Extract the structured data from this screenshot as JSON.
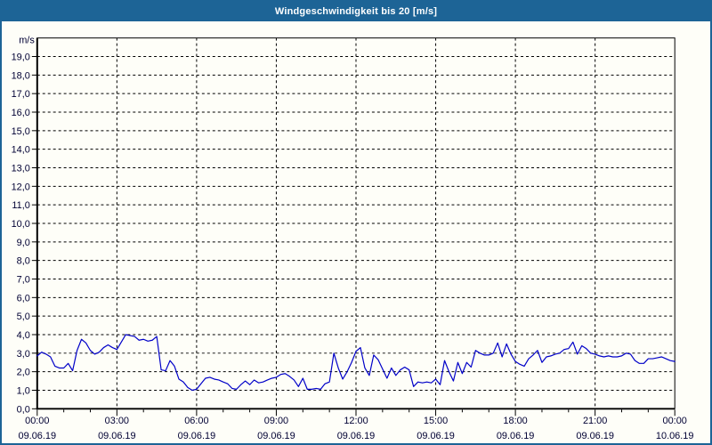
{
  "window": {
    "title": "Windgeschwindigkeit bis 20 [m/s]"
  },
  "colors": {
    "titlebar_bg": "#1D6496",
    "titlebar_text": "#FFFFFF",
    "window_border": "#1D6496",
    "background": "#FEFEF8",
    "grid_color": "#000000",
    "axis_color": "#000000",
    "label_color": "#000033",
    "series_line": "#0000C8"
  },
  "chart_data": {
    "type": "line",
    "title": "Windgeschwindigkeit bis 20 [m/s]",
    "unit_label": "m/s",
    "ylim": [
      0,
      20
    ],
    "xlim_hours": [
      0,
      24
    ],
    "grid": "dashed",
    "legend_position": "none",
    "y_tick_labels": [
      "0,0",
      "1,0",
      "2,0",
      "3,0",
      "4,0",
      "5,0",
      "6,0",
      "7,0",
      "8,0",
      "9,0",
      "10,0",
      "11,0",
      "12,0",
      "13,0",
      "14,0",
      "15,0",
      "16,0",
      "17,0",
      "18,0",
      "19,0"
    ],
    "x_ticks": [
      {
        "hour": 0,
        "time": "00:00",
        "date": "09.06.19"
      },
      {
        "hour": 3,
        "time": "03:00",
        "date": "09.06.19"
      },
      {
        "hour": 6,
        "time": "06:00",
        "date": "09.06.19"
      },
      {
        "hour": 9,
        "time": "09:00",
        "date": "09.06.19"
      },
      {
        "hour": 12,
        "time": "12:00",
        "date": "09.06.19"
      },
      {
        "hour": 15,
        "time": "15:00",
        "date": "09.06.19"
      },
      {
        "hour": 18,
        "time": "18:00",
        "date": "09.06.19"
      },
      {
        "hour": 21,
        "time": "21:00",
        "date": "09.06.19"
      },
      {
        "hour": 24,
        "time": "00:00",
        "date": "10.06.19"
      }
    ],
    "minor_x_tick_interval_hours": 1,
    "series": [
      {
        "name": "Windgeschwindigkeit",
        "color": "#0000C8",
        "x_start_hour": 0,
        "x_step_hours": 0.16667,
        "values": [
          2.85,
          3.05,
          2.95,
          2.8,
          2.3,
          2.2,
          2.2,
          2.45,
          2.05,
          3.15,
          3.75,
          3.55,
          3.15,
          2.95,
          3.05,
          3.3,
          3.45,
          3.3,
          3.2,
          3.6,
          4.0,
          3.95,
          3.9,
          3.7,
          3.75,
          3.65,
          3.7,
          3.9,
          2.1,
          2.05,
          2.6,
          2.3,
          1.6,
          1.45,
          1.15,
          1.0,
          1.05,
          1.35,
          1.65,
          1.7,
          1.6,
          1.55,
          1.45,
          1.35,
          1.1,
          1.05,
          1.3,
          1.5,
          1.3,
          1.55,
          1.4,
          1.45,
          1.55,
          1.65,
          1.7,
          1.85,
          1.9,
          1.75,
          1.55,
          1.2,
          1.65,
          1.05,
          1.05,
          1.1,
          1.05,
          1.35,
          1.45,
          3.0,
          2.2,
          1.6,
          2.0,
          2.5,
          3.1,
          3.3,
          2.2,
          1.8,
          2.9,
          2.65,
          2.15,
          1.65,
          2.2,
          1.8,
          2.1,
          2.25,
          2.1,
          1.2,
          1.45,
          1.4,
          1.45,
          1.4,
          1.6,
          1.3,
          2.6,
          2.0,
          1.5,
          2.5,
          1.9,
          2.5,
          2.25,
          3.15,
          3.0,
          2.9,
          2.9,
          3.0,
          3.55,
          2.8,
          3.5,
          2.95,
          2.55,
          2.4,
          2.3,
          2.7,
          2.9,
          3.15,
          2.5,
          2.8,
          2.85,
          2.95,
          3.0,
          3.2,
          3.25,
          3.6,
          2.95,
          3.4,
          3.25,
          3.0,
          2.95,
          2.85,
          2.8,
          2.85,
          2.8,
          2.8,
          2.85,
          3.0,
          2.95,
          2.6,
          2.45,
          2.45,
          2.7,
          2.7,
          2.75,
          2.8,
          2.7,
          2.6,
          2.55
        ]
      }
    ]
  }
}
